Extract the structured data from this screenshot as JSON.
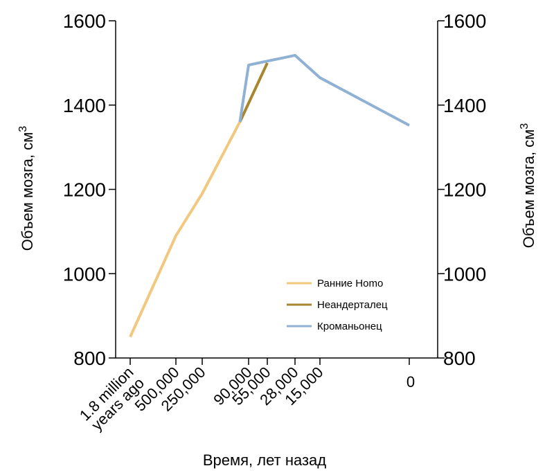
{
  "chart_data": {
    "type": "line",
    "xlabel": "Время, лет назад",
    "ylabel_left": "Объем мозга, см",
    "ylabel_right": "Объем мозга, см",
    "ylabel_superscript": "3",
    "ylim": [
      800,
      1600
    ],
    "yticks": [
      800,
      1000,
      1200,
      1400,
      1600
    ],
    "x_categories": [
      {
        "label": [
          "1.8 million",
          "years ago"
        ],
        "value": 1800000
      },
      {
        "label": [
          "500,000"
        ],
        "value": 500000
      },
      {
        "label": [
          "250,000"
        ],
        "value": 250000
      },
      {
        "label": [
          "90,000"
        ],
        "value": 90000
      },
      {
        "label": [
          "55,000"
        ],
        "value": 55000
      },
      {
        "label": [
          "28,000"
        ],
        "value": 28000
      },
      {
        "label": [
          "15,000"
        ],
        "value": 15000
      },
      {
        "label": [
          "0"
        ],
        "value": 0
      }
    ],
    "series": [
      {
        "name": "Ранние Homo",
        "color": "#f2c77e",
        "points": [
          {
            "t": 1800000,
            "y": 850
          },
          {
            "t": 500000,
            "y": 1090
          },
          {
            "t": 250000,
            "y": 1190
          },
          {
            "t": 120000,
            "y": 1360
          }
        ]
      },
      {
        "name": "Неандерталец",
        "color": "#a8862f",
        "points": [
          {
            "t": 120000,
            "y": 1360
          },
          {
            "t": 55000,
            "y": 1500
          }
        ]
      },
      {
        "name": "Кроманьонец",
        "color": "#8fb1d4",
        "points": [
          {
            "t": 120000,
            "y": 1360
          },
          {
            "t": 90000,
            "y": 1495
          },
          {
            "t": 28000,
            "y": 1518
          },
          {
            "t": 15000,
            "y": 1465
          },
          {
            "t": 0,
            "y": 1352
          }
        ]
      }
    ],
    "legend": {
      "placement": "lower-right"
    }
  }
}
